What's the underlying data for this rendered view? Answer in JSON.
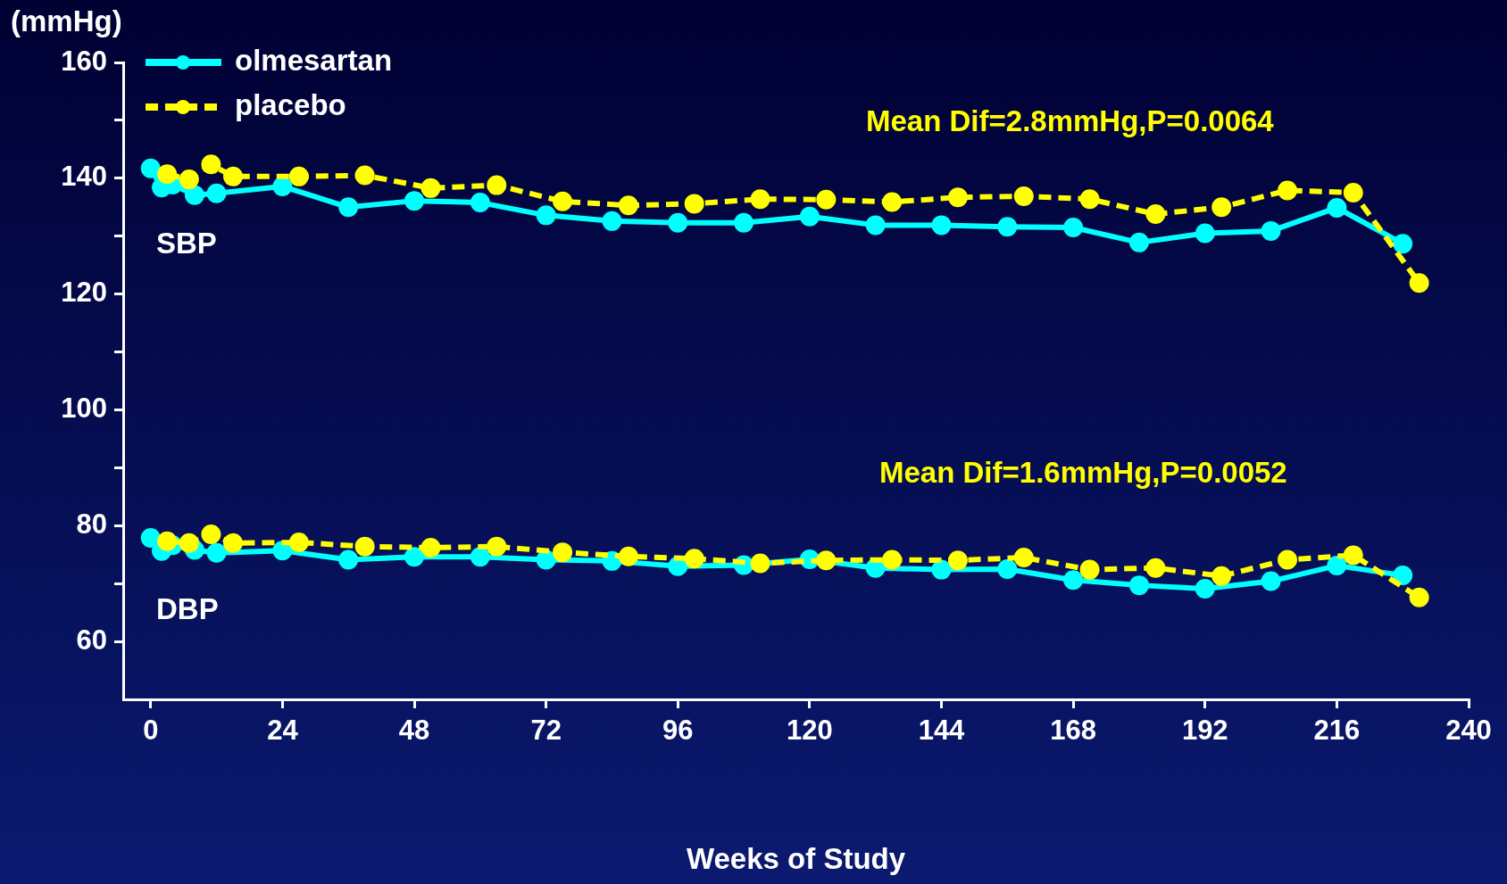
{
  "chart_data": {
    "type": "line",
    "xlabel": "Weeks of Study",
    "ylabel": "(mmHg)",
    "legend": "top left",
    "marker": "circle",
    "xlim": [
      -5,
      240
    ],
    "xticks": [
      0,
      24,
      48,
      72,
      96,
      120,
      144,
      168,
      192,
      216,
      240
    ],
    "ylim": [
      50,
      160
    ],
    "yticks": [
      60,
      {
        "value": 70,
        "label": null
      },
      80,
      {
        "value": 90,
        "label": null
      },
      100,
      {
        "value": 110,
        "label": null
      },
      120,
      {
        "value": 130,
        "label": null
      },
      140,
      {
        "value": 150,
        "label": null
      },
      160
    ],
    "series": [
      {
        "name": "olmesartan",
        "color": "#00ffff",
        "line_style": "solid",
        "x": [
          0,
          2,
          4,
          8,
          12,
          24,
          36,
          48,
          60,
          72,
          84,
          96,
          108,
          120,
          132,
          144,
          156,
          168,
          180,
          192,
          204,
          216,
          228
        ],
        "values": [
          141.7,
          138.4,
          138.9,
          137.1,
          137.4,
          138.6,
          135.0,
          136.1,
          135.8,
          133.6,
          132.6,
          132.3,
          132.3,
          133.4,
          131.9,
          131.9,
          131.6,
          131.5,
          128.9,
          130.5,
          130.9,
          134.9,
          128.7
        ]
      },
      {
        "name": "placebo",
        "color": "#ffff00",
        "line_style": "dashed",
        "x": [
          3,
          7,
          11,
          15,
          27,
          39,
          51,
          63,
          75,
          87,
          99,
          111,
          123,
          135,
          147,
          159,
          171,
          183,
          195,
          207,
          219,
          231
        ],
        "values": [
          140.7,
          139.8,
          142.4,
          140.3,
          140.3,
          140.5,
          138.3,
          138.8,
          136.0,
          135.3,
          135.6,
          136.4,
          136.3,
          135.9,
          136.7,
          136.9,
          136.4,
          133.8,
          135.0,
          137.9,
          137.5,
          121.9
        ]
      },
      {
        "color": "#00ffff",
        "line_style": "solid",
        "x": [
          0,
          2,
          4,
          8,
          12,
          24,
          36,
          48,
          60,
          72,
          84,
          96,
          108,
          120,
          132,
          144,
          156,
          168,
          180,
          192,
          204,
          216,
          228
        ],
        "values": [
          77.9,
          75.6,
          76.6,
          75.8,
          75.3,
          75.7,
          74.1,
          74.6,
          74.6,
          74.1,
          73.9,
          73.0,
          73.2,
          74.2,
          72.7,
          72.4,
          72.5,
          70.6,
          69.7,
          69.1,
          70.4,
          73.1,
          71.4
        ]
      },
      {
        "color": "#ffff00",
        "line_style": "dashed",
        "x": [
          3,
          7,
          11,
          15,
          27,
          39,
          51,
          63,
          75,
          87,
          99,
          111,
          123,
          135,
          147,
          159,
          171,
          183,
          195,
          207,
          219,
          231
        ],
        "values": [
          77.3,
          77.0,
          78.5,
          77.0,
          77.1,
          76.4,
          76.2,
          76.4,
          75.4,
          74.7,
          74.3,
          73.5,
          74.0,
          74.1,
          74.0,
          74.5,
          72.4,
          72.7,
          71.3,
          74.1,
          74.9,
          67.6
        ]
      }
    ],
    "annotations": [
      "Mean Dif=2.8mmHg,P=0.0064",
      "SBP",
      "Mean Dif=1.6mmHg,P=0.0052",
      "DBP"
    ]
  }
}
